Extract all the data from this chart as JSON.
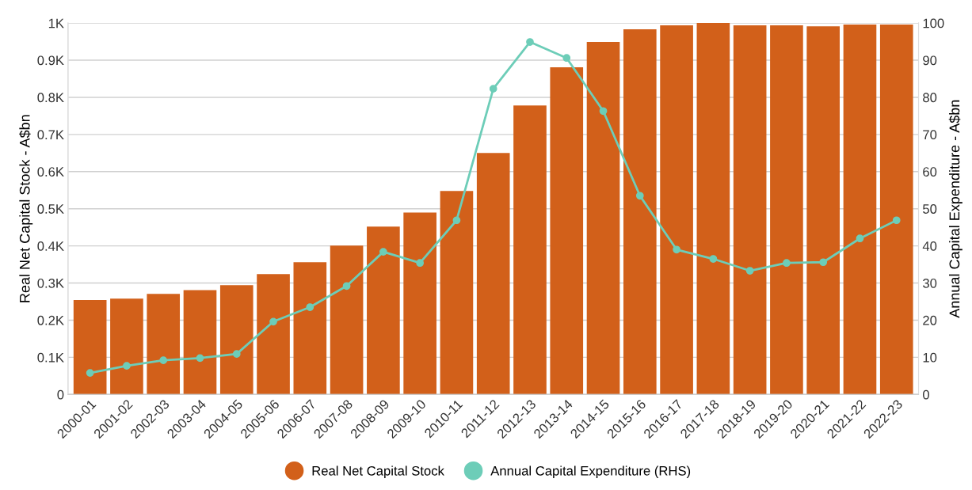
{
  "chart_data": {
    "type": "bar",
    "ylabel": "Real Net Capital Stock - A$bn",
    "y2label": "Annual Capital Expenditure - A$bn",
    "categories": [
      "2000-01",
      "2001-02",
      "2002-03",
      "2003-04",
      "2004-05",
      "2005-06",
      "2006-07",
      "2007-08",
      "2008-09",
      "2009-10",
      "2010-11",
      "2011-12",
      "2012-13",
      "2013-14",
      "2014-15",
      "2015-16",
      "2016-17",
      "2017-18",
      "2018-19",
      "2019-20",
      "2020-21",
      "2021-22",
      "2022-23"
    ],
    "series": [
      {
        "name": "Real Net Capital Stock",
        "color": "#d2601a",
        "values": [
          254,
          258,
          271,
          281,
          294,
          324,
          356,
          401,
          452,
          490,
          548,
          650,
          778,
          881,
          949,
          983,
          994,
          1000,
          994,
          994,
          991,
          996,
          996
        ]
      },
      {
        "name": "Annual Capital Expenditure (RHS)",
        "type": "line",
        "axis": "y2",
        "color": "#6dcdb8",
        "marker": "circle",
        "values": [
          5.8,
          7.7,
          9.2,
          9.8,
          10.9,
          19.6,
          23.5,
          29.2,
          38.4,
          35.4,
          46.9,
          82.3,
          94.9,
          90.6,
          76.3,
          53.5,
          39.0,
          36.5,
          33.3,
          35.4,
          35.6,
          42.0,
          46.9
        ]
      }
    ],
    "ylim": [
      0,
      1000
    ],
    "yticks": [
      0,
      {
        "value": 100,
        "label": "0.1K"
      },
      {
        "value": 200,
        "label": "0.2K"
      },
      {
        "value": 300,
        "label": "0.3K"
      },
      {
        "value": 400,
        "label": "0.4K"
      },
      {
        "value": 500,
        "label": "0.5K"
      },
      {
        "value": 600,
        "label": "0.6K"
      },
      {
        "value": 700,
        "label": "0.7K"
      },
      {
        "value": 800,
        "label": "0.8K"
      },
      {
        "value": 900,
        "label": "0.9K"
      },
      {
        "value": 1000,
        "label": "1K"
      }
    ],
    "y2lim": [
      0,
      100
    ],
    "y2ticks": [
      0,
      10,
      20,
      30,
      40,
      50,
      60,
      70,
      80,
      90,
      100
    ],
    "grid": "y",
    "legend": "bottom"
  }
}
